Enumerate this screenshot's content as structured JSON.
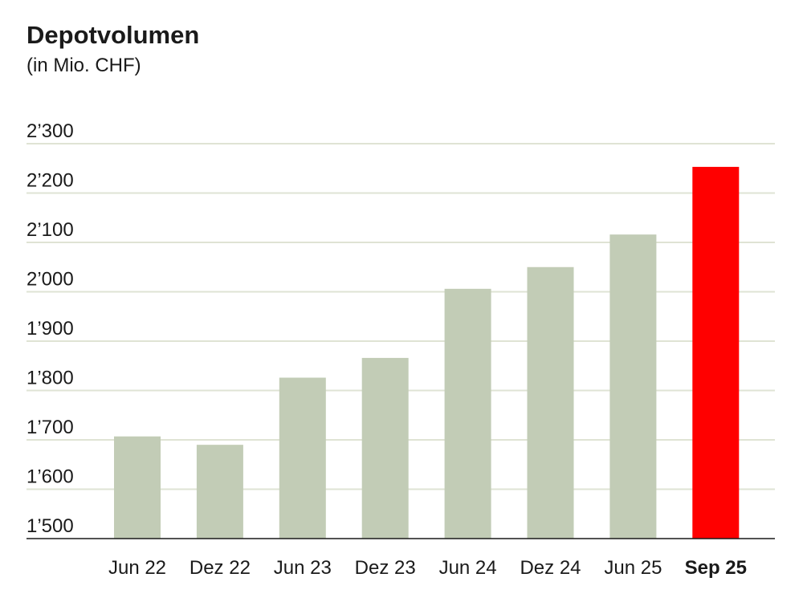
{
  "title": "Depotvolumen",
  "subtitle": "(in Mio. CHF)",
  "colors": {
    "bar": "#c2ccb6",
    "highlight": "#ff0000",
    "grid": "#dfe3d4",
    "axis": "#1a1a1a"
  },
  "chart_data": {
    "type": "bar",
    "title": "Depotvolumen",
    "subtitle": "(in Mio. CHF)",
    "xlabel": "",
    "ylabel": "",
    "ylim": [
      1500,
      2300
    ],
    "yticks": [
      1500,
      1600,
      1700,
      1800,
      1900,
      2000,
      2100,
      2200,
      2300
    ],
    "ytick_labels": [
      "1’500",
      "1’600",
      "1’700",
      "1’800",
      "1’900",
      "2’000",
      "2’100",
      "2’200",
      "2’300"
    ],
    "grid": true,
    "categories": [
      "Jun 22",
      "Dez 22",
      "Jun 23",
      "Dez 23",
      "Jun 24",
      "Dez 24",
      "Jun 25",
      "Sep 25"
    ],
    "values": [
      1707,
      1690,
      1826,
      1866,
      2006,
      2050,
      2116,
      2253
    ],
    "highlight_index": 7
  }
}
